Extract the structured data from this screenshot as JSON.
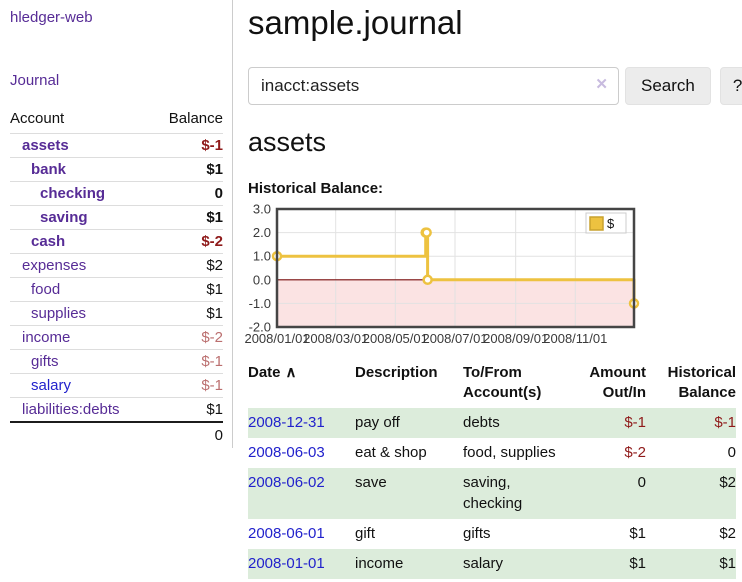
{
  "colors": {
    "link_purple": "#572c96",
    "link_blue": "#2222cc",
    "negative": "#8f1a1a",
    "negative_muted": "#bb6f6f",
    "row_green": "#dcecdb",
    "series_gold": "#EDC240"
  },
  "sidebar": {
    "brand": "hledger-web",
    "nav_journal": "Journal",
    "accounts": {
      "header_account": "Account",
      "header_balance": "Balance",
      "rows": [
        {
          "name": "assets",
          "indent": 1,
          "emph": true,
          "link": "purple",
          "balance": "$-1",
          "balance_style": "neg-bold"
        },
        {
          "name": "bank",
          "indent": 2,
          "emph": true,
          "link": "purple",
          "balance": "$1",
          "balance_style": "bold"
        },
        {
          "name": "checking",
          "indent": 3,
          "emph": true,
          "link": "purple",
          "balance": "0",
          "balance_style": "bold"
        },
        {
          "name": "saving",
          "indent": 3,
          "emph": true,
          "link": "purple",
          "balance": "$1",
          "balance_style": "bold"
        },
        {
          "name": "cash",
          "indent": 2,
          "emph": true,
          "link": "purple",
          "balance": "$-2",
          "balance_style": "neg-bold"
        },
        {
          "name": "expenses",
          "indent": 1,
          "emph": false,
          "link": "purple",
          "balance": "$2",
          "balance_style": ""
        },
        {
          "name": "food",
          "indent": 2,
          "emph": false,
          "link": "purple",
          "balance": "$1",
          "balance_style": ""
        },
        {
          "name": "supplies",
          "indent": 2,
          "emph": false,
          "link": "purple",
          "balance": "$1",
          "balance_style": ""
        },
        {
          "name": "income",
          "indent": 1,
          "emph": false,
          "link": "purple",
          "balance": "$-2",
          "balance_style": "neg-muted"
        },
        {
          "name": "gifts",
          "indent": 2,
          "emph": false,
          "link": "purple",
          "balance": "$-1",
          "balance_style": "neg-muted"
        },
        {
          "name": "salary",
          "indent": 2,
          "emph": false,
          "link": "blue",
          "balance": "$-1",
          "balance_style": "neg-muted"
        },
        {
          "name": "liabilities:debts",
          "indent": 1,
          "emph": false,
          "link": "purple",
          "balance": "$1",
          "balance_style": ""
        }
      ],
      "total": "0"
    }
  },
  "main": {
    "title": "sample.journal",
    "search": {
      "value": "inacct:assets",
      "clear_icon": "✕",
      "search_button": "Search",
      "help_button": "?"
    },
    "account_heading": "assets",
    "chart_label": "Historical Balance:",
    "register": {
      "headers": [
        "Date",
        "Description",
        "To/From Account(s)",
        "Amount Out/In",
        "Historical Balance"
      ],
      "sort_indicator": "∧",
      "rows": [
        {
          "date": "2008-12-31",
          "description": "pay off",
          "accounts": "debts",
          "amount": "$-1",
          "amount_neg": true,
          "balance": "$-1",
          "balance_neg": true
        },
        {
          "date": "2008-06-03",
          "description": "eat & shop",
          "accounts": "food, supplies",
          "amount": "$-2",
          "amount_neg": true,
          "balance": "0",
          "balance_neg": false
        },
        {
          "date": "2008-06-02",
          "description": "save",
          "accounts": "saving, checking",
          "amount": "0",
          "amount_neg": false,
          "balance": "$2",
          "balance_neg": false
        },
        {
          "date": "2008-06-01",
          "description": "gift",
          "accounts": "gifts",
          "amount": "$1",
          "amount_neg": false,
          "balance": "$2",
          "balance_neg": false
        },
        {
          "date": "2008-01-01",
          "description": "income",
          "accounts": "salary",
          "amount": "$1",
          "amount_neg": false,
          "balance": "$1",
          "balance_neg": false
        }
      ]
    }
  },
  "chart_data": {
    "type": "line",
    "step": true,
    "title": "Historical Balance:",
    "series": [
      {
        "name": "$",
        "color": "#EDC240",
        "points": [
          [
            "2008-01-01",
            1
          ],
          [
            "2008-06-01",
            2
          ],
          [
            "2008-06-02",
            2
          ],
          [
            "2008-06-03",
            0
          ],
          [
            "2008-12-31",
            -1
          ]
        ]
      }
    ],
    "x_range": [
      "2008-01-01",
      "2008-12-31"
    ],
    "x_ticks": [
      {
        "date": "2008-01-01",
        "label": "2008/01/01"
      },
      {
        "date": "2008-03-01",
        "label": "2008/03/01"
      },
      {
        "date": "2008-05-01",
        "label": "2008/05/01"
      },
      {
        "date": "2008-07-01",
        "label": "2008/07/01"
      },
      {
        "date": "2008-09-01",
        "label": "2008/09/01"
      },
      {
        "date": "2008-11-01",
        "label": "2008/11/01"
      }
    ],
    "y_ticks": [
      3.0,
      2.0,
      1.0,
      0.0,
      -1.0,
      -2.0
    ],
    "ylim": [
      -2,
      3
    ],
    "grid": true,
    "legend_position": "top-right",
    "legend": [
      {
        "swatch": "#EDC240",
        "label": "$"
      }
    ],
    "style": {
      "negative_region": "#fbe3e3",
      "zero_line": "#7d1010",
      "grid_line": "#e2e2e2",
      "border": "#454545",
      "marker_fill": "#ffffff",
      "swatch_border": "#c9a22e",
      "tick_text": "#3a3a3a"
    }
  }
}
